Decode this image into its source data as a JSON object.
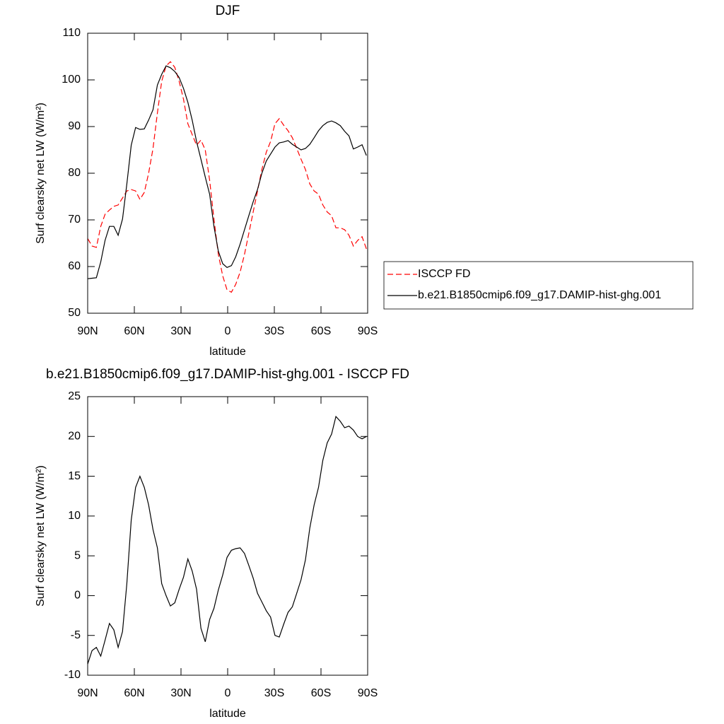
{
  "chart_data": [
    {
      "type": "line",
      "title": "DJF",
      "xlabel": "latitude",
      "ylabel": "Surf clearsky net LW (W/m²)",
      "x": [
        90,
        87.2,
        84.4,
        81.6,
        78.8,
        76,
        73.2,
        70.4,
        67.6,
        64.8,
        62,
        59.2,
        56.4,
        53.6,
        50.8,
        48,
        45.2,
        42.4,
        39.6,
        36.8,
        34,
        31.2,
        28.4,
        25.6,
        22.8,
        20,
        17.2,
        14.4,
        11.6,
        8.8,
        6,
        3.2,
        0.4,
        -2.4,
        -5.2,
        -8,
        -10.8,
        -13.6,
        -16.4,
        -19.2,
        -22,
        -24.8,
        -27.6,
        -30.4,
        -33.2,
        -36,
        -38.8,
        -41.6,
        -44.4,
        -47.2,
        -50,
        -52.8,
        -55.6,
        -58.4,
        -61.2,
        -64,
        -66.8,
        -69.6,
        -72.4,
        -75.2,
        -78,
        -80.8,
        -83.6,
        -86.4,
        -89.2
      ],
      "series": [
        {
          "name": "ISCCP FD",
          "color": "#ff0000",
          "line_style": "dashed",
          "values": [
            66,
            64.4,
            64.1,
            68.6,
            71.2,
            72.1,
            72.9,
            73.2,
            74.7,
            76.2,
            76.5,
            76.2,
            74.4,
            75.9,
            80,
            85.3,
            92.9,
            99.7,
            103,
            103.9,
            102.7,
            99.7,
            95.9,
            90.6,
            88.3,
            86,
            87.1,
            85,
            78.5,
            70.2,
            62.6,
            58,
            55,
            54.5,
            56.2,
            58.8,
            62.6,
            67.1,
            71.7,
            76.2,
            80.8,
            84.5,
            86.8,
            90.6,
            91.7,
            90.3,
            89.1,
            87.6,
            85.3,
            83,
            80.8,
            77.7,
            76.2,
            75.5,
            73.2,
            71.7,
            70.9,
            68.3,
            68.3,
            67.9,
            66.7,
            64.4,
            65.6,
            66.4,
            63.8
          ]
        },
        {
          "name": "b.e21.B1850cmip6.f09_g17.DAMIP-hist-ghg.001",
          "color": "#000000",
          "line_style": "solid",
          "values": [
            57.4,
            57.5,
            57.6,
            61,
            65.6,
            68.6,
            68.6,
            66.7,
            70.2,
            77.7,
            86,
            89.8,
            89.4,
            89.5,
            91.4,
            93.6,
            98.9,
            101.2,
            103,
            102.6,
            101.8,
            100.5,
            98.2,
            95.2,
            91.4,
            86.8,
            83,
            79.2,
            75.5,
            68.6,
            63.3,
            60.6,
            59.8,
            60.2,
            62.1,
            64.8,
            67.9,
            70.9,
            73.9,
            76.5,
            80,
            82.6,
            84.1,
            85.6,
            86.5,
            86.7,
            87,
            86.2,
            85.6,
            85,
            85.3,
            86.2,
            87.6,
            89.1,
            90.2,
            90.9,
            91.2,
            90.8,
            90.2,
            89,
            88,
            85.2,
            85.6,
            86.1,
            83.8
          ]
        }
      ],
      "xlim": [
        90,
        -90
      ],
      "xticks": [
        {
          "value": 90,
          "label": "90N"
        },
        {
          "value": 60,
          "label": "60N"
        },
        {
          "value": 30,
          "label": "30N"
        },
        0,
        {
          "value": -30,
          "label": "30S"
        },
        {
          "value": -60,
          "label": "60S"
        },
        {
          "value": -90,
          "label": "90S"
        }
      ],
      "ylim": [
        50,
        110
      ],
      "yticks": [
        50,
        60,
        70,
        80,
        90,
        100,
        110
      ],
      "legend": "right"
    },
    {
      "type": "line",
      "title": "b.e21.B1850cmip6.f09_g17.DAMIP-hist-ghg.001 - ISCCP FD",
      "xlabel": "latitude",
      "ylabel": "Surf clearsky net LW (W/m²)",
      "x": [
        90,
        87.2,
        84.4,
        81.6,
        78.8,
        76,
        73.2,
        70.4,
        67.6,
        64.8,
        62,
        59.2,
        56.4,
        53.6,
        50.8,
        48,
        45.2,
        42.4,
        39.6,
        36.8,
        34,
        31.2,
        28.4,
        25.6,
        22.8,
        20,
        17.2,
        14.4,
        11.6,
        8.8,
        6,
        3.2,
        0.4,
        -2.4,
        -5.2,
        -8,
        -10.8,
        -13.6,
        -16.4,
        -19.2,
        -22,
        -24.8,
        -27.6,
        -30.4,
        -33.2,
        -36,
        -38.8,
        -41.6,
        -44.4,
        -47.2,
        -50,
        -52.8,
        -55.6,
        -58.4,
        -61.2,
        -64,
        -66.8,
        -69.6,
        -72.4,
        -75.2,
        -78,
        -80.8,
        -83.6,
        -86.4,
        -89.2
      ],
      "series": [
        {
          "color": "#000000",
          "line_style": "solid",
          "values": [
            -8.6,
            -6.9,
            -6.5,
            -7.6,
            -5.6,
            -3.5,
            -4.3,
            -6.5,
            -4.5,
            1.5,
            9.5,
            13.6,
            15,
            13.6,
            11.4,
            8.3,
            6,
            1.5,
            0,
            -1.3,
            -0.9,
            0.8,
            2.3,
            4.6,
            3.1,
            0.8,
            -4.1,
            -5.8,
            -3,
            -1.6,
            0.7,
            2.6,
            4.8,
            5.7,
            5.9,
            6,
            5.3,
            3.8,
            2.2,
            0.3,
            -0.8,
            -1.9,
            -2.7,
            -5,
            -5.2,
            -3.6,
            -2.1,
            -1.4,
            0.3,
            2,
            4.5,
            8.5,
            11.4,
            13.6,
            17,
            19.2,
            20.3,
            22.5,
            21.9,
            21.1,
            21.3,
            20.8,
            20,
            19.7,
            20
          ]
        }
      ],
      "xlim": [
        90,
        -90
      ],
      "xticks": [
        {
          "value": 90,
          "label": "90N"
        },
        {
          "value": 60,
          "label": "60N"
        },
        {
          "value": 30,
          "label": "30N"
        },
        0,
        {
          "value": -30,
          "label": "30S"
        },
        {
          "value": -60,
          "label": "60S"
        },
        {
          "value": -90,
          "label": "90S"
        }
      ],
      "ylim": [
        -10,
        25
      ],
      "yticks": [
        -10,
        -5,
        0,
        5,
        10,
        15,
        20,
        25
      ]
    }
  ]
}
